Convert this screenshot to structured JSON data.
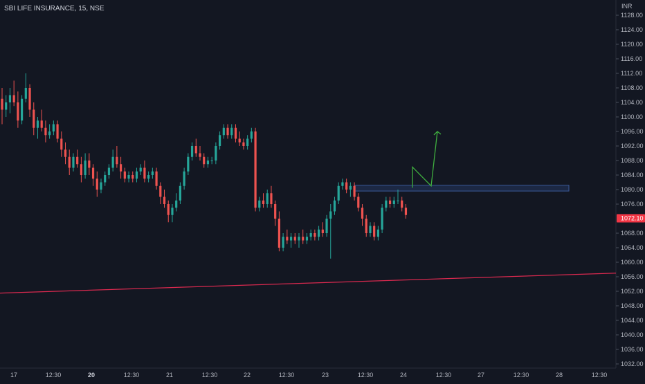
{
  "header": {
    "title": "SBI LIFE INSURANCE, 15, NSE"
  },
  "colors": {
    "background": "#131722",
    "up": "#26a69a",
    "down": "#ef5350",
    "trendline": "#d9294f",
    "zone_fill": "#1e2b4a",
    "zone_stroke": "#3b5a9a",
    "projection": "#3fae3f",
    "price_badge": "#f23645"
  },
  "chart_data": {
    "type": "candlestick",
    "title": "SBI LIFE INSURANCE, 15, NSE",
    "currency_label": "INR",
    "last_price": "1072.10",
    "y_ticks": [
      "1128.00",
      "1124.00",
      "1120.00",
      "1116.00",
      "1112.00",
      "1108.00",
      "1104.00",
      "1100.00",
      "1096.00",
      "1092.00",
      "1088.00",
      "1084.00",
      "1080.00",
      "1076.00",
      "1068.00",
      "1064.00",
      "1060.00",
      "1056.00",
      "1052.00",
      "1048.00",
      "1044.00",
      "1040.00",
      "1036.00",
      "1032.00"
    ],
    "ylim": [
      1032,
      1130
    ],
    "x_ticks": [
      {
        "label": "17",
        "bold": false
      },
      {
        "label": "12:30",
        "bold": false
      },
      {
        "label": "20",
        "bold": true
      },
      {
        "label": "12:30",
        "bold": false
      },
      {
        "label": "21",
        "bold": false
      },
      {
        "label": "12:30",
        "bold": false
      },
      {
        "label": "22",
        "bold": false
      },
      {
        "label": "12:30",
        "bold": false
      },
      {
        "label": "23",
        "bold": false
      },
      {
        "label": "12:30",
        "bold": false
      },
      {
        "label": "24",
        "bold": false
      },
      {
        "label": "12:30",
        "bold": false
      },
      {
        "label": "27",
        "bold": false
      },
      {
        "label": "12:30",
        "bold": false
      },
      {
        "label": "28",
        "bold": false
      },
      {
        "label": "12:30",
        "bold": false
      }
    ],
    "candles": [
      [
        1105,
        1108,
        1098,
        1102
      ],
      [
        1102,
        1106,
        1100,
        1104
      ],
      [
        1104,
        1108,
        1101,
        1106
      ],
      [
        1106,
        1110,
        1103,
        1104
      ],
      [
        1104,
        1107,
        1097,
        1099
      ],
      [
        1099,
        1106,
        1098,
        1105
      ],
      [
        1105,
        1112,
        1104,
        1108
      ],
      [
        1108,
        1109,
        1100,
        1102
      ],
      [
        1102,
        1104,
        1095,
        1097
      ],
      [
        1097,
        1100,
        1094,
        1099
      ],
      [
        1099,
        1102,
        1096,
        1097
      ],
      [
        1097,
        1099,
        1093,
        1095
      ],
      [
        1095,
        1098,
        1094,
        1096
      ],
      [
        1096,
        1099,
        1095,
        1098
      ],
      [
        1098,
        1099,
        1093,
        1094
      ],
      [
        1094,
        1096,
        1089,
        1091
      ],
      [
        1091,
        1093,
        1087,
        1089
      ],
      [
        1089,
        1091,
        1084,
        1086
      ],
      [
        1086,
        1090,
        1085,
        1089
      ],
      [
        1089,
        1091,
        1086,
        1087
      ],
      [
        1087,
        1089,
        1082,
        1084
      ],
      [
        1084,
        1090,
        1083,
        1088
      ],
      [
        1088,
        1090,
        1084,
        1086
      ],
      [
        1086,
        1087,
        1081,
        1083
      ],
      [
        1083,
        1085,
        1078,
        1080
      ],
      [
        1080,
        1083,
        1079,
        1082
      ],
      [
        1082,
        1085,
        1081,
        1084
      ],
      [
        1084,
        1087,
        1083,
        1086
      ],
      [
        1086,
        1091,
        1085,
        1089
      ],
      [
        1089,
        1092,
        1086,
        1087
      ],
      [
        1087,
        1089,
        1083,
        1085
      ],
      [
        1085,
        1086,
        1082,
        1083
      ],
      [
        1083,
        1085,
        1082,
        1084
      ],
      [
        1084,
        1085,
        1082,
        1083
      ],
      [
        1083,
        1086,
        1082,
        1085
      ],
      [
        1085,
        1087,
        1084,
        1086
      ],
      [
        1086,
        1088,
        1082,
        1083
      ],
      [
        1083,
        1085,
        1082,
        1084
      ],
      [
        1084,
        1086,
        1083,
        1085
      ],
      [
        1085,
        1086,
        1080,
        1081
      ],
      [
        1081,
        1082,
        1076,
        1078
      ],
      [
        1078,
        1080,
        1075,
        1076
      ],
      [
        1076,
        1077,
        1071,
        1073
      ],
      [
        1073,
        1076,
        1071,
        1075
      ],
      [
        1075,
        1079,
        1074,
        1077
      ],
      [
        1077,
        1082,
        1076,
        1081
      ],
      [
        1081,
        1086,
        1080,
        1085
      ],
      [
        1085,
        1090,
        1084,
        1089
      ],
      [
        1089,
        1093,
        1088,
        1092
      ],
      [
        1092,
        1094,
        1089,
        1090
      ],
      [
        1090,
        1092,
        1088,
        1089
      ],
      [
        1089,
        1090,
        1086,
        1087
      ],
      [
        1087,
        1089,
        1086,
        1088
      ],
      [
        1088,
        1089,
        1087,
        1088
      ],
      [
        1088,
        1093,
        1087,
        1092
      ],
      [
        1092,
        1096,
        1091,
        1095
      ],
      [
        1095,
        1098,
        1094,
        1097
      ],
      [
        1097,
        1098,
        1094,
        1095
      ],
      [
        1095,
        1098,
        1094,
        1097
      ],
      [
        1097,
        1098,
        1093,
        1094
      ],
      [
        1094,
        1096,
        1092,
        1093
      ],
      [
        1093,
        1094,
        1091,
        1092
      ],
      [
        1092,
        1095,
        1091,
        1094
      ],
      [
        1094,
        1097,
        1093,
        1096
      ],
      [
        1096,
        1097,
        1074,
        1075
      ],
      [
        1075,
        1078,
        1074,
        1077
      ],
      [
        1077,
        1079,
        1075,
        1076
      ],
      [
        1076,
        1080,
        1075,
        1079
      ],
      [
        1079,
        1081,
        1075,
        1076
      ],
      [
        1076,
        1077,
        1070,
        1072
      ],
      [
        1072,
        1074,
        1063,
        1064
      ],
      [
        1064,
        1068,
        1063,
        1067
      ],
      [
        1067,
        1069,
        1065,
        1066
      ],
      [
        1066,
        1068,
        1064,
        1067
      ],
      [
        1067,
        1068,
        1065,
        1066
      ],
      [
        1066,
        1068,
        1064,
        1067
      ],
      [
        1067,
        1069,
        1065,
        1066
      ],
      [
        1066,
        1068,
        1065,
        1067
      ],
      [
        1067,
        1069,
        1066,
        1068
      ],
      [
        1068,
        1069,
        1066,
        1067
      ],
      [
        1067,
        1070,
        1066,
        1069
      ],
      [
        1069,
        1071,
        1067,
        1068
      ],
      [
        1068,
        1073,
        1067,
        1072
      ],
      [
        1072,
        1076,
        1061,
        1074
      ],
      [
        1074,
        1078,
        1073,
        1077
      ],
      [
        1077,
        1082,
        1076,
        1081
      ],
      [
        1081,
        1083,
        1080,
        1082
      ],
      [
        1082,
        1083,
        1079,
        1080
      ],
      [
        1080,
        1082,
        1078,
        1081
      ],
      [
        1081,
        1082,
        1077,
        1078
      ],
      [
        1078,
        1079,
        1074,
        1075
      ],
      [
        1075,
        1076,
        1070,
        1072
      ],
      [
        1072,
        1073,
        1067,
        1068
      ],
      [
        1068,
        1071,
        1067,
        1070
      ],
      [
        1070,
        1071,
        1066,
        1067
      ],
      [
        1067,
        1070,
        1066,
        1069
      ],
      [
        1069,
        1076,
        1068,
        1075
      ],
      [
        1075,
        1078,
        1074,
        1077
      ],
      [
        1077,
        1078,
        1075,
        1076
      ],
      [
        1076,
        1078,
        1075,
        1077
      ],
      [
        1077,
        1080,
        1076,
        1077
      ],
      [
        1077,
        1078,
        1074,
        1075
      ],
      [
        1075,
        1076,
        1072,
        1073
      ]
    ],
    "support_zone": [
      1079.6,
      1081.2
    ],
    "trendline": [
      1051.5,
      1057.0
    ],
    "projection": [
      1080.5,
      1086.2,
      1081.0,
      1096.0
    ]
  }
}
